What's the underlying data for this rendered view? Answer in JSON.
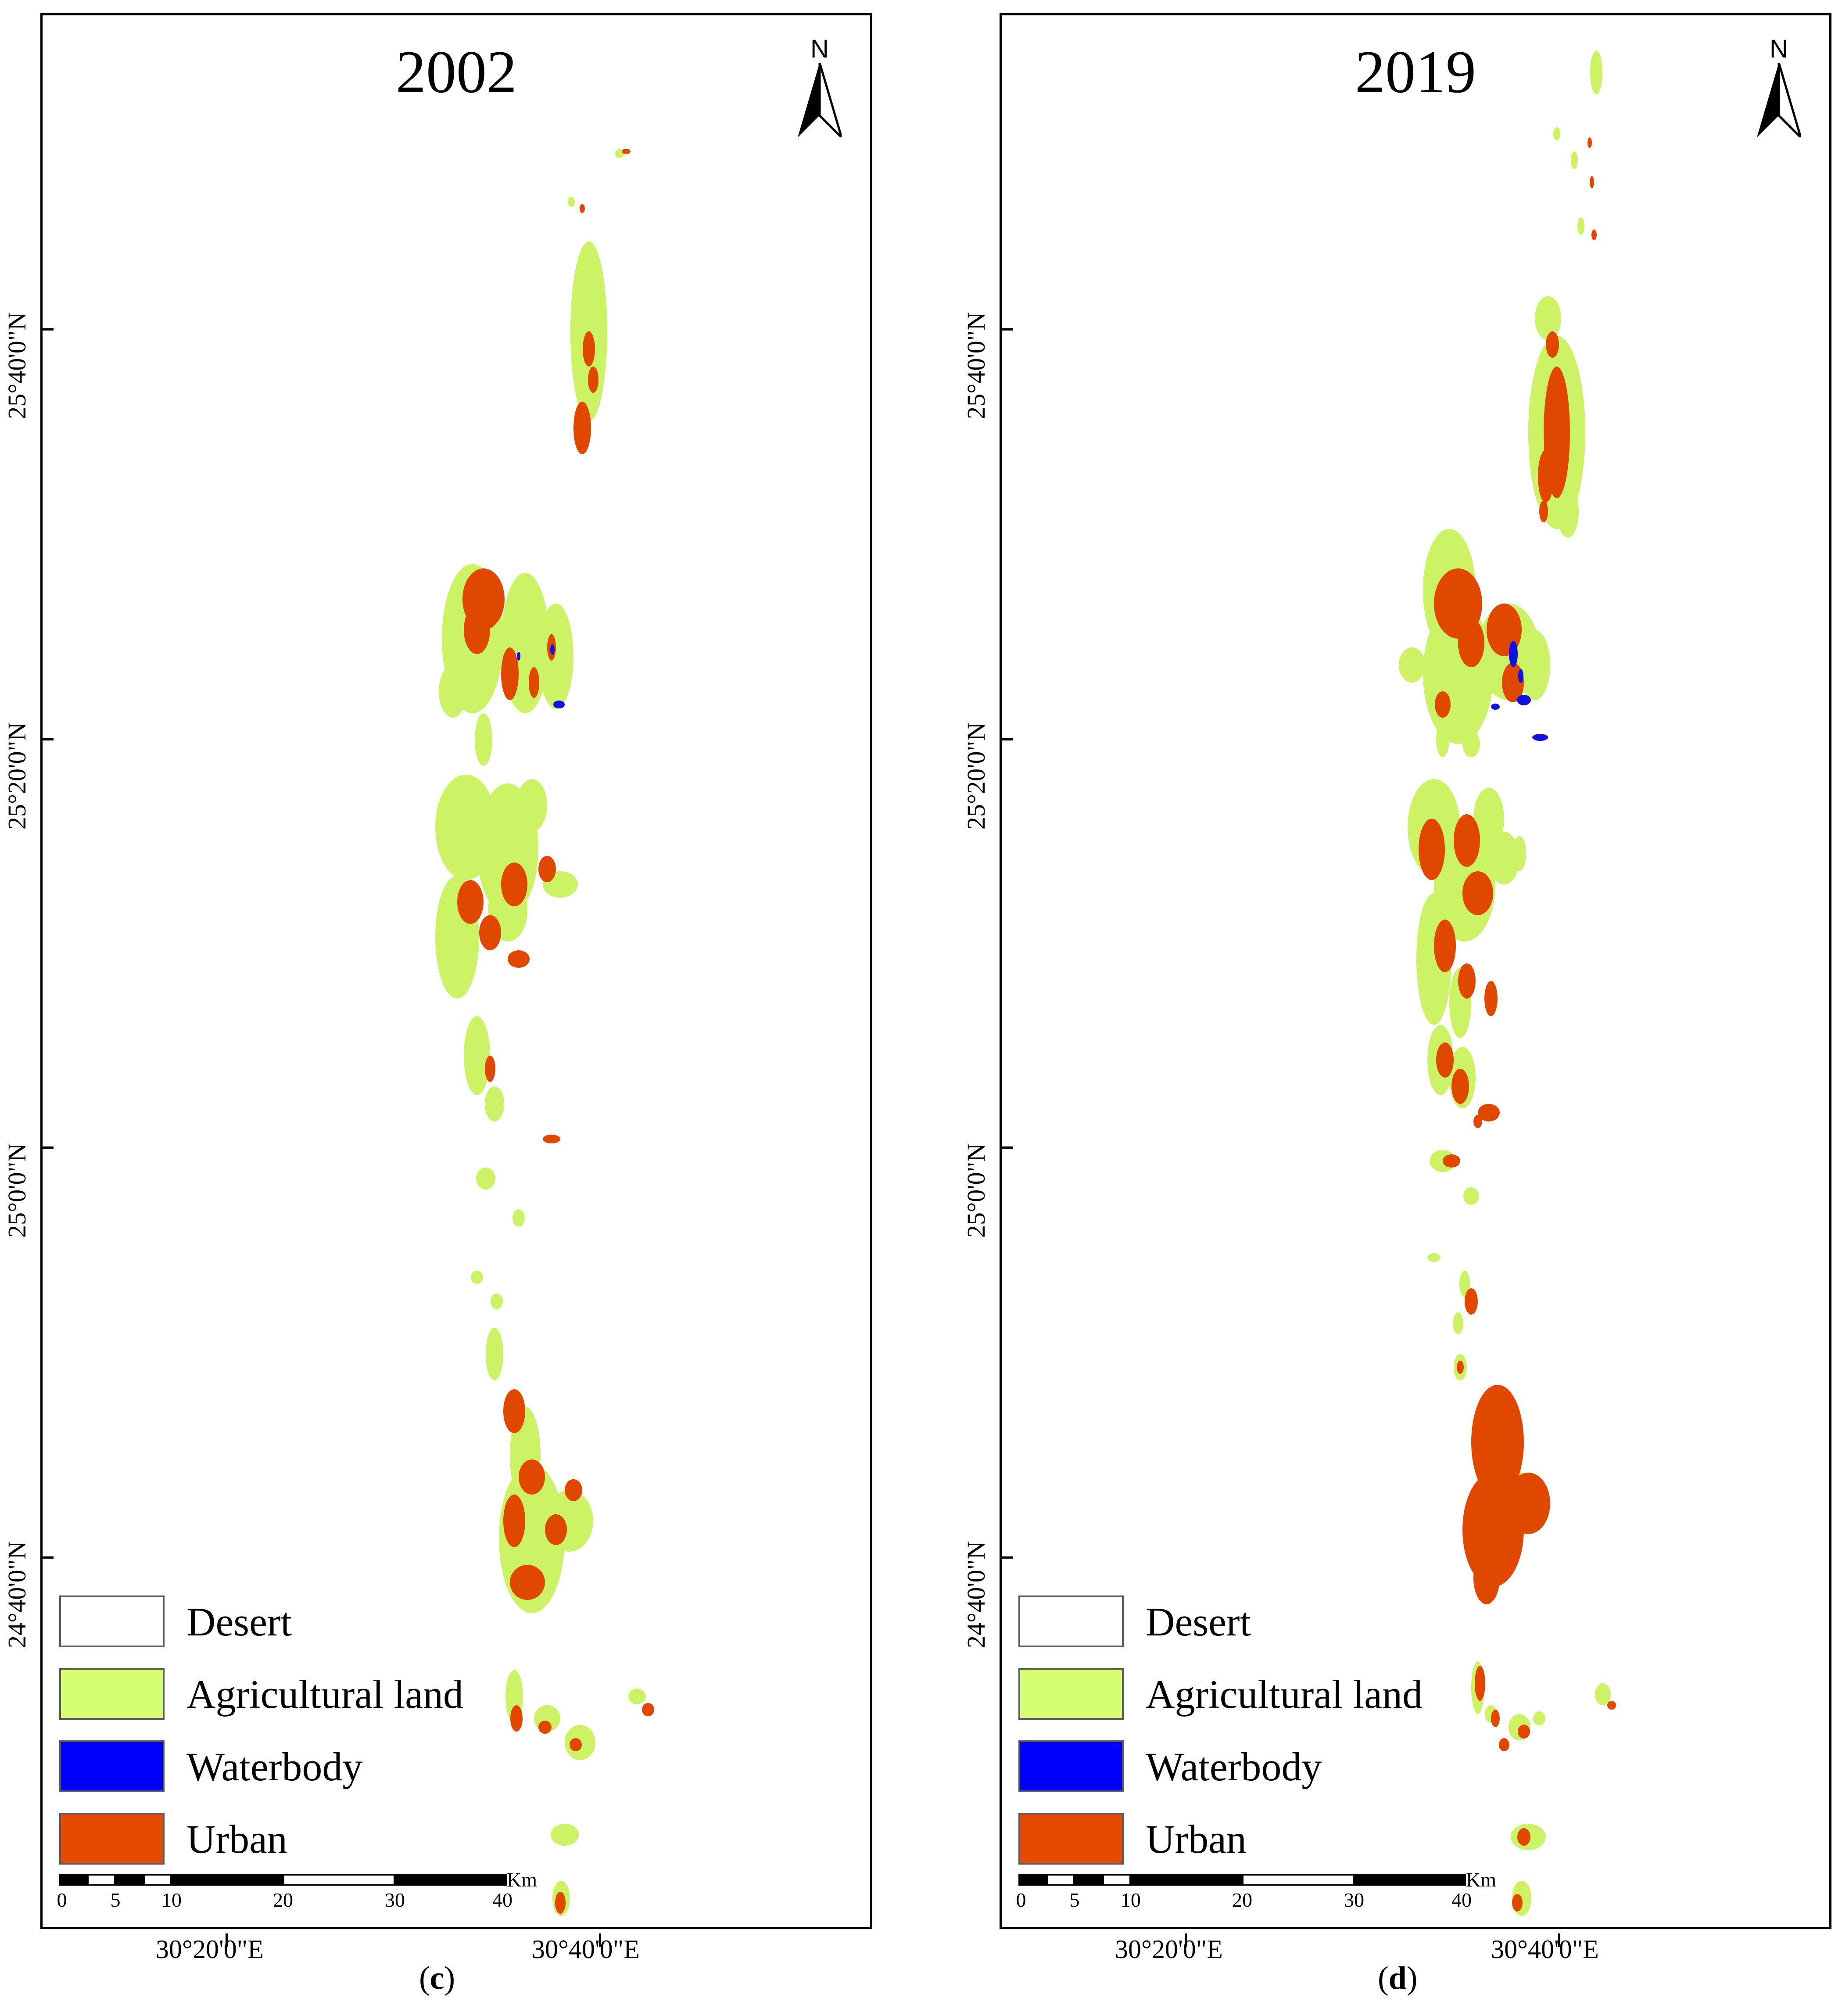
{
  "panels": [
    {
      "id": "c",
      "year": "2002",
      "north_label": "N",
      "caption_letter": "c",
      "lat_labels": [
        "25°40'0\"N",
        "25°20'0\"N",
        "25°0'0\"N",
        "24°40'0\"N"
      ],
      "lon_labels": [
        "30°20'0\"E",
        "30°40'0\"E"
      ],
      "scale_labels": [
        "0",
        "5",
        "10",
        "20",
        "30",
        "40"
      ],
      "scale_unit": "Km"
    },
    {
      "id": "d",
      "year": "2019",
      "north_label": "N",
      "caption_letter": "d",
      "lat_labels": [
        "25°40'0\"N",
        "25°20'0\"N",
        "25°0'0\"N",
        "24°40'0\"N"
      ],
      "lon_labels": [
        "30°20'0\"E",
        "30°40'0\"E"
      ],
      "scale_labels": [
        "0",
        "5",
        "10",
        "20",
        "30",
        "40"
      ],
      "scale_unit": "Km"
    }
  ],
  "legend": [
    {
      "label": "Desert",
      "color": "#ffffff"
    },
    {
      "label": "Agricultural land",
      "color": "#d4ff73"
    },
    {
      "label": "Waterbody",
      "color": "#0000ff"
    },
    {
      "label": "Urban",
      "color": "#e64a00"
    }
  ],
  "colors": {
    "agriculture": "#ccf266",
    "urban": "#e04800",
    "water": "#1010e0"
  }
}
